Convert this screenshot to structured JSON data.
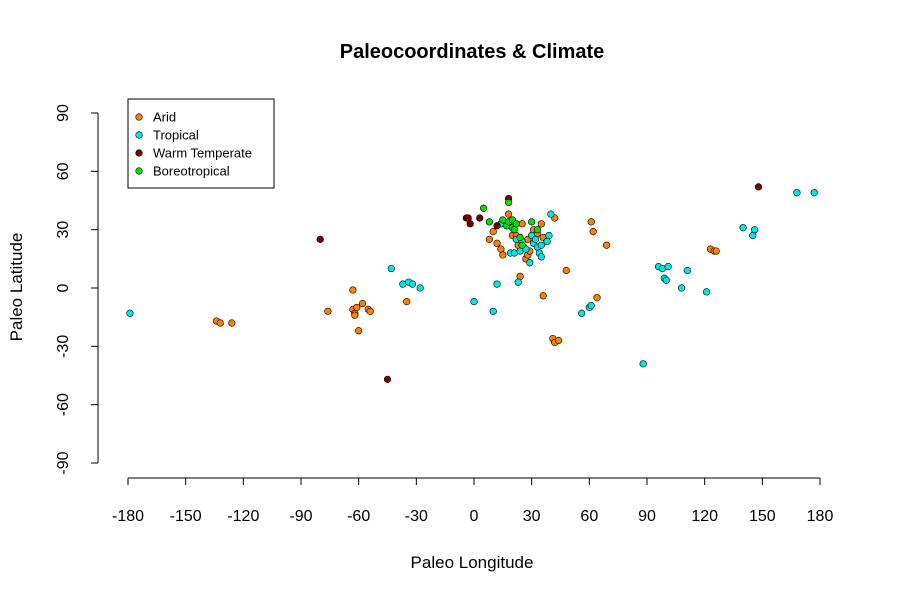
{
  "chart_data": {
    "type": "scatter",
    "title": "Paleocoordinates & Climate",
    "xlabel": "Paleo Longitude",
    "ylabel": "Paleo Latitude",
    "xlim": [
      -180,
      180
    ],
    "ylim": [
      -90,
      90
    ],
    "xticks": [
      -180,
      -150,
      -120,
      -90,
      -60,
      -30,
      0,
      30,
      60,
      90,
      120,
      150,
      180
    ],
    "yticks": [
      -90,
      -60,
      -30,
      0,
      30,
      60,
      90
    ],
    "grid": false,
    "legend_position": "top-left",
    "series": [
      {
        "name": "Arid",
        "color": "#ff7f00",
        "points": [
          [
            -134,
            -17
          ],
          [
            -132,
            -18
          ],
          [
            -126,
            -18
          ],
          [
            -76,
            -12
          ],
          [
            -63,
            -1
          ],
          [
            -63,
            -11
          ],
          [
            -62,
            -13
          ],
          [
            -62,
            -14
          ],
          [
            -61,
            -10
          ],
          [
            -60,
            -22
          ],
          [
            -58,
            -8
          ],
          [
            -55,
            -11
          ],
          [
            -54,
            -12
          ],
          [
            -35,
            -7
          ],
          [
            8,
            25
          ],
          [
            10,
            29
          ],
          [
            12,
            23
          ],
          [
            14,
            20
          ],
          [
            15,
            17
          ],
          [
            18,
            38
          ],
          [
            20,
            27
          ],
          [
            22,
            27
          ],
          [
            23,
            22
          ],
          [
            24,
            6
          ],
          [
            25,
            33
          ],
          [
            26,
            21
          ],
          [
            27,
            15
          ],
          [
            28,
            17
          ],
          [
            28,
            25
          ],
          [
            29,
            19
          ],
          [
            30,
            27
          ],
          [
            31,
            30
          ],
          [
            33,
            28
          ],
          [
            35,
            33
          ],
          [
            36,
            -4
          ],
          [
            36,
            26
          ],
          [
            42,
            36
          ],
          [
            41,
            -26
          ],
          [
            42,
            -28
          ],
          [
            44,
            -27
          ],
          [
            48,
            9
          ],
          [
            61,
            34
          ],
          [
            62,
            29
          ],
          [
            64,
            -5
          ],
          [
            69,
            22
          ],
          [
            123,
            20
          ],
          [
            125,
            19
          ],
          [
            126,
            19
          ]
        ]
      },
      {
        "name": "Tropical",
        "color": "#00e5e5",
        "points": [
          [
            -179,
            -13
          ],
          [
            -43,
            10
          ],
          [
            -37,
            2
          ],
          [
            -34,
            3
          ],
          [
            -32,
            2
          ],
          [
            -28,
            0
          ],
          [
            0,
            -7
          ],
          [
            10,
            -12
          ],
          [
            12,
            2
          ],
          [
            14,
            33
          ],
          [
            19,
            18
          ],
          [
            21,
            18
          ],
          [
            22,
            25
          ],
          [
            23,
            3
          ],
          [
            24,
            19
          ],
          [
            25,
            24
          ],
          [
            27,
            20
          ],
          [
            29,
            13
          ],
          [
            30,
            27
          ],
          [
            31,
            23
          ],
          [
            32,
            25
          ],
          [
            33,
            21
          ],
          [
            34,
            18
          ],
          [
            35,
            16
          ],
          [
            35,
            22
          ],
          [
            38,
            24
          ],
          [
            39,
            27
          ],
          [
            40,
            38
          ],
          [
            56,
            -13
          ],
          [
            60,
            -10
          ],
          [
            61,
            -9
          ],
          [
            88,
            -39
          ],
          [
            96,
            11
          ],
          [
            98,
            10
          ],
          [
            99,
            5
          ],
          [
            100,
            4
          ],
          [
            101,
            11
          ],
          [
            108,
            0
          ],
          [
            111,
            9
          ],
          [
            121,
            -2
          ],
          [
            140,
            31
          ],
          [
            145,
            27
          ],
          [
            146,
            30
          ],
          [
            168,
            49
          ],
          [
            177,
            49
          ]
        ]
      },
      {
        "name": "Warm Temperate",
        "color": "#7a0000",
        "points": [
          [
            -80,
            25
          ],
          [
            -45,
            -47
          ],
          [
            -4,
            36
          ],
          [
            -3,
            36
          ],
          [
            -2,
            33
          ],
          [
            3,
            36
          ],
          [
            12,
            32
          ],
          [
            18,
            46
          ],
          [
            148,
            52
          ]
        ]
      },
      {
        "name": "Boreotropical",
        "color": "#00e000",
        "points": [
          [
            5,
            41
          ],
          [
            8,
            34
          ],
          [
            15,
            35
          ],
          [
            17,
            32
          ],
          [
            18,
            34
          ],
          [
            18,
            44
          ],
          [
            20,
            35
          ],
          [
            20,
            31
          ],
          [
            21,
            30
          ],
          [
            22,
            33
          ],
          [
            24,
            26
          ],
          [
            25,
            22
          ],
          [
            30,
            34
          ],
          [
            33,
            30
          ]
        ]
      }
    ]
  }
}
